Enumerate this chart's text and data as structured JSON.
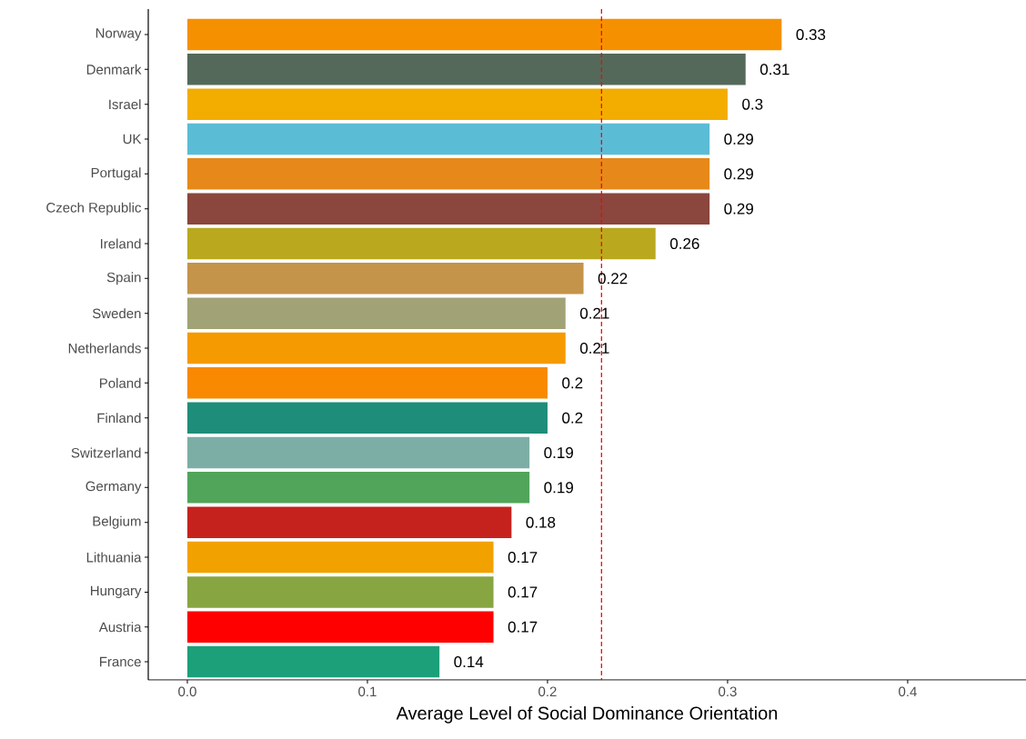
{
  "chart_data": {
    "type": "bar",
    "orientation": "horizontal",
    "xlabel": "Average Level of Social Dominance Orientation",
    "categories": [
      "Norway",
      "Denmark",
      "Israel",
      "UK",
      "Portugal",
      "Czech Republic",
      "Ireland",
      "Spain",
      "Sweden",
      "Netherlands",
      "Poland",
      "Finland",
      "Switzerland",
      "Germany",
      "Belgium",
      "Lithuania",
      "Hungary",
      "Austria",
      "France"
    ],
    "values": [
      0.33,
      0.31,
      0.3,
      0.29,
      0.29,
      0.29,
      0.26,
      0.22,
      0.21,
      0.21,
      0.2,
      0.2,
      0.19,
      0.19,
      0.18,
      0.17,
      0.17,
      0.17,
      0.14
    ],
    "colors": [
      "#f59100",
      "#54695a",
      "#f2ad00",
      "#5bbcd6",
      "#e6891a",
      "#8b463d",
      "#baa91f",
      "#c4944a",
      "#a1a276",
      "#f59a00",
      "#f88900",
      "#1e8d7a",
      "#7daea5",
      "#51a55a",
      "#c5221e",
      "#f2a200",
      "#87a641",
      "#ff0000",
      "#1ca07a"
    ],
    "data_labels": true,
    "xlim": [
      -0.0217,
      0.4657
    ],
    "xticks": [
      {
        "value": 0,
        "label": "0.0"
      },
      0.1,
      0.2,
      0.3,
      0.4
    ],
    "ref_lines": [
      {
        "axis": "x",
        "value": 0.23,
        "color": "#ff0000",
        "line_style": "dashed"
      }
    ]
  }
}
